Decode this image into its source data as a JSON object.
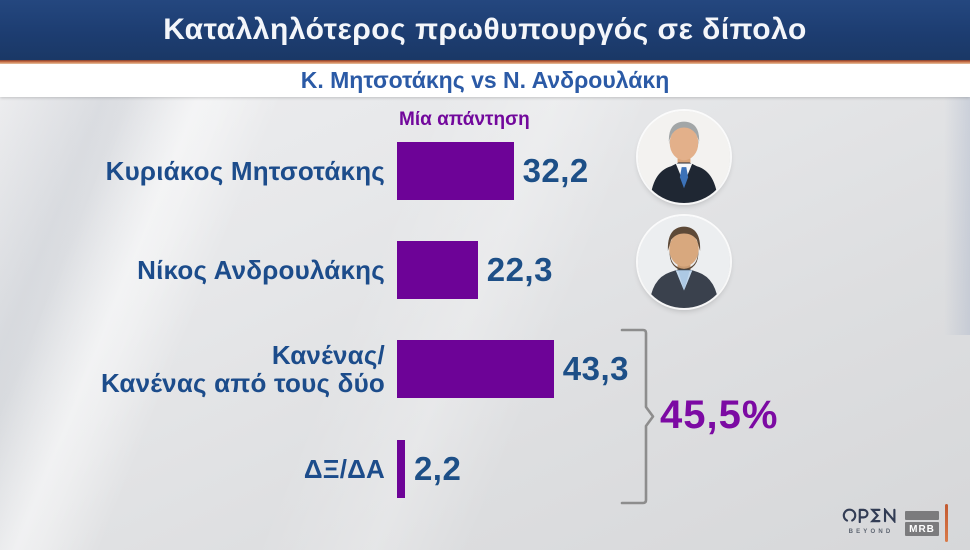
{
  "header": {
    "title": "Καταλληλότερος πρωθυπουργός σε δίπολο",
    "subtitle": "Κ. Μητσοτάκης vs Ν. Ανδρουλάκη"
  },
  "chart_data": {
    "type": "bar",
    "orientation": "horizontal",
    "title": "Καταλληλότερος πρωθυπουργός σε δίπολο",
    "subtitle": "Κ. Μητσοτάκης vs Ν. Ανδρουλάκη",
    "note": "Μία απάντηση",
    "categories": [
      "Κυριάκος Μητσοτάκης",
      "Νίκος Ανδρουλάκης",
      "Κανένας/Κανένας από τους δύο",
      "ΔΞ/ΔΑ"
    ],
    "values": [
      32.2,
      22.3,
      43.3,
      2.2
    ],
    "xlim": [
      0,
      50
    ],
    "grid": false,
    "legend": false,
    "bar_color": "#6d0397",
    "rows": [
      {
        "label_lines": [
          "Κυριάκος Μητσοτάκης"
        ],
        "value": 32.2,
        "display": "32,2",
        "photo": "mitsotakis"
      },
      {
        "label_lines": [
          "Νίκος Ανδρουλάκης"
        ],
        "value": 22.3,
        "display": "22,3",
        "photo": "androulakis"
      },
      {
        "label_lines": [
          "Κανένας/",
          "Κανένας από τους δύο"
        ],
        "value": 43.3,
        "display": "43,3"
      },
      {
        "label_lines": [
          "ΔΞ/ΔΑ"
        ],
        "value": 2.2,
        "display": "2,2"
      }
    ],
    "group_annotation": {
      "label": "45,5%",
      "grouped_rows": [
        2,
        3
      ],
      "sum": 45.5
    }
  },
  "branding": {
    "channel": "OPEN",
    "channel_sub": "BEYOND",
    "agency": "MRB"
  },
  "colors": {
    "banner_blue": "#1d3d71",
    "orange_rule": "#c96f45",
    "bar_purple": "#6d0397",
    "note_purple": "#72089c",
    "total_purple": "#7c0aa3",
    "label_blue": "#1c4c8b",
    "value_blue": "#1d4f87",
    "subtitle_blue": "#2b5aa6",
    "bracket_gray": "#8d8d8d"
  }
}
